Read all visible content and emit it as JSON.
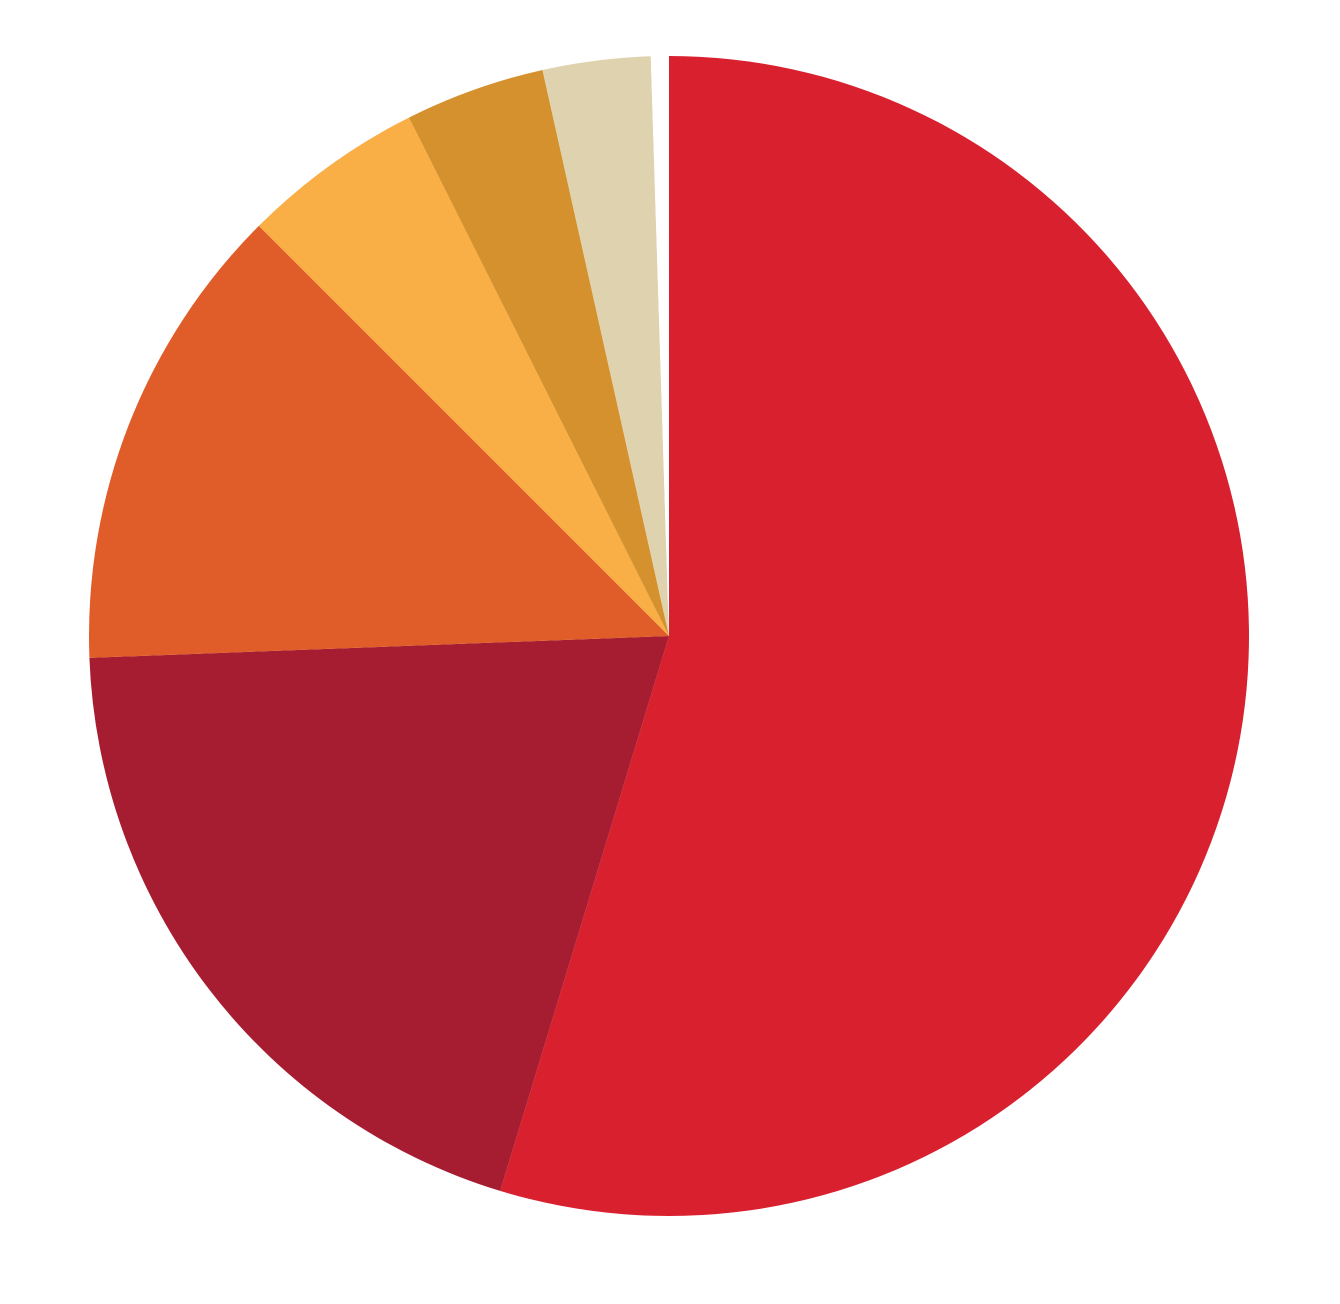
{
  "chart_data": {
    "type": "pie",
    "values": [
      54.7,
      19.7,
      13.1,
      5.1,
      3.9,
      3.0,
      0.5
    ],
    "colors": [
      "#d9202f",
      "#a61c30",
      "#e05c28",
      "#f9af45",
      "#d4912e",
      "#dfd3af",
      "#ffffff"
    ]
  }
}
